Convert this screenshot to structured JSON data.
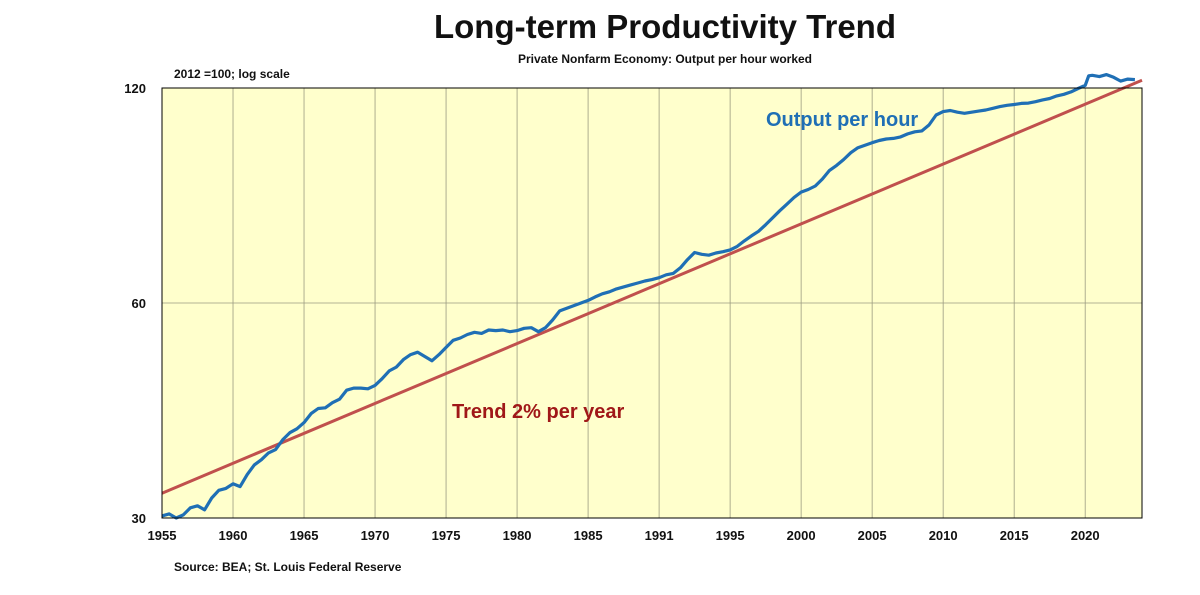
{
  "chart_data": {
    "type": "line",
    "title": "Long-term Productivity Trend",
    "subtitle": "Private Nonfarm Economy: Output per hour worked",
    "ylabel": "2012 =100; log scale",
    "source": "Source: BEA; St. Louis Federal Reserve",
    "y_scale": "log",
    "ylim": [
      30,
      120
    ],
    "xlim": [
      1955,
      2024
    ],
    "y_ticks": [
      30,
      60,
      120
    ],
    "x_tick_labels": [
      "1955",
      "1960",
      "1965",
      "1970",
      "1975",
      "1980",
      "1985",
      "1991",
      "1995",
      "2000",
      "2005",
      "2010",
      "2015",
      "2020"
    ],
    "grid": true,
    "background_color": "#ffffcc",
    "series": [
      {
        "name": "Output per hour",
        "color": "#1f6fb5",
        "annotation": "Output per hour",
        "x": [
          1955.0,
          1955.5,
          1956.0,
          1956.5,
          1957.0,
          1957.5,
          1958.0,
          1958.5,
          1959.0,
          1959.5,
          1960.0,
          1960.5,
          1961.0,
          1961.5,
          1962.0,
          1962.5,
          1963.0,
          1963.5,
          1964.0,
          1964.5,
          1965.0,
          1965.5,
          1966.0,
          1966.5,
          1967.0,
          1967.5,
          1968.0,
          1968.5,
          1969.0,
          1969.5,
          1970.0,
          1970.5,
          1971.0,
          1971.5,
          1972.0,
          1972.5,
          1973.0,
          1973.5,
          1974.0,
          1974.5,
          1975.0,
          1975.5,
          1976.0,
          1976.5,
          1977.0,
          1977.5,
          1978.0,
          1978.5,
          1979.0,
          1979.5,
          1980.0,
          1980.5,
          1981.0,
          1981.5,
          1982.0,
          1982.5,
          1983.0,
          1983.5,
          1984.0,
          1984.5,
          1985.0,
          1985.5,
          1986.0,
          1986.5,
          1987.0,
          1987.5,
          1988.0,
          1988.5,
          1989.0,
          1989.5,
          1990.0,
          1990.5,
          1991.0,
          1991.5,
          1992.0,
          1992.5,
          1993.0,
          1993.5,
          1994.0,
          1994.5,
          1995.0,
          1995.5,
          1996.0,
          1996.5,
          1997.0,
          1997.5,
          1998.0,
          1998.5,
          1999.0,
          1999.5,
          2000.0,
          2000.5,
          2001.0,
          2001.5,
          2002.0,
          2002.5,
          2003.0,
          2003.5,
          2004.0,
          2004.5,
          2005.0,
          2005.5,
          2006.0,
          2006.5,
          2007.0,
          2007.5,
          2008.0,
          2008.5,
          2009.0,
          2009.5,
          2010.0,
          2010.5,
          2011.0,
          2011.5,
          2012.0,
          2012.5,
          2013.0,
          2013.5,
          2014.0,
          2014.5,
          2015.0,
          2015.5,
          2016.0,
          2016.5,
          2017.0,
          2017.5,
          2018.0,
          2018.5,
          2019.0,
          2019.5,
          2020.0,
          2020.25,
          2020.5,
          2021.0,
          2021.5,
          2022.0,
          2022.5,
          2023.0,
          2023.5
        ],
        "values": [
          30.2,
          30.4,
          30.0,
          30.3,
          31.0,
          31.2,
          30.8,
          32.0,
          32.8,
          33.0,
          33.5,
          33.2,
          34.5,
          35.6,
          36.2,
          37.0,
          37.4,
          38.6,
          39.5,
          40.0,
          40.8,
          42.0,
          42.7,
          42.8,
          43.5,
          44.0,
          45.3,
          45.6,
          45.6,
          45.5,
          46.0,
          47.0,
          48.2,
          48.8,
          50.0,
          50.8,
          51.2,
          50.5,
          49.8,
          50.8,
          52.0,
          53.2,
          53.6,
          54.2,
          54.6,
          54.4,
          55.0,
          54.9,
          55.0,
          54.7,
          54.9,
          55.3,
          55.4,
          54.7,
          55.4,
          56.8,
          58.5,
          59.0,
          59.5,
          60.0,
          60.5,
          61.2,
          61.8,
          62.2,
          62.8,
          63.2,
          63.6,
          64.0,
          64.4,
          64.7,
          65.1,
          65.7,
          66.0,
          67.2,
          69.0,
          70.6,
          70.2,
          70.0,
          70.5,
          70.8,
          71.2,
          72.0,
          73.3,
          74.5,
          75.6,
          77.2,
          79.0,
          80.8,
          82.5,
          84.3,
          85.8,
          86.5,
          87.5,
          89.5,
          92.0,
          93.5,
          95.3,
          97.4,
          99.0,
          99.8,
          100.6,
          101.3,
          101.8,
          102.0,
          102.5,
          103.5,
          104.2,
          104.5,
          106.5,
          110.0,
          111.2,
          111.6,
          111.0,
          110.6,
          111.0,
          111.4,
          111.8,
          112.4,
          113.0,
          113.5,
          113.8,
          114.2,
          114.3,
          114.8,
          115.5,
          116.0,
          117.0,
          117.6,
          118.5,
          119.8,
          121.0,
          124.8,
          125.0,
          124.5,
          125.3,
          124.2,
          122.7,
          123.5,
          123.3
        ]
      },
      {
        "name": "Trend 2% per year",
        "color": "#c0504d",
        "annotation": "Trend 2% per year",
        "x": [
          1955,
          2024
        ],
        "values": [
          32.5,
          123.0
        ]
      }
    ]
  }
}
